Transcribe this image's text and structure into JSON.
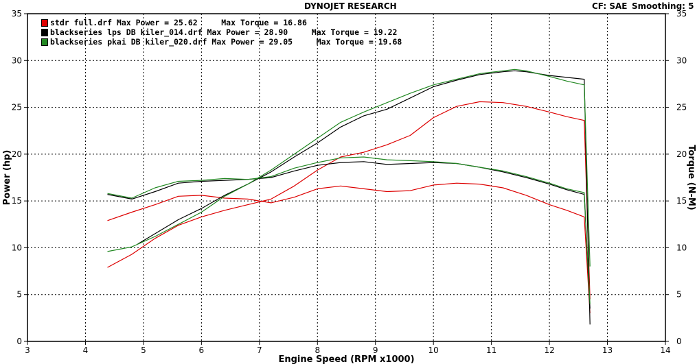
{
  "header": {
    "title": "DYNOJET RESEARCH",
    "cf_label": "CF: SAE",
    "smoothing_label": "Smoothing: 5"
  },
  "legend": [
    {
      "text": "stdr full.drf Max Power = 25.62     Max Torque = 16.86",
      "color": "#dd0000"
    },
    {
      "text": "blackseries lps DB kiler_014.drf Max Power = 28.90     Max Torque = 19.22",
      "color": "#000000"
    },
    {
      "text": "blackseries pkai DB kiler_020.drf Max Power = 29.05     Max Torque = 19.68",
      "color": "#228822"
    }
  ],
  "chart_data": {
    "type": "line",
    "xlabel": "Engine Speed (RPM x1000)",
    "ylabel": "Power (hp)",
    "y2label": "Torque (N-M)",
    "xlim": [
      3,
      14
    ],
    "ylim": [
      0,
      35
    ],
    "y2lim": [
      0,
      35
    ],
    "xticks": [
      3,
      4,
      5,
      6,
      7,
      8,
      9,
      10,
      11,
      12,
      13,
      14
    ],
    "yticks": [
      0,
      5,
      10,
      15,
      20,
      25,
      30,
      35
    ],
    "grid": true,
    "legend_position": "top-left",
    "series": [
      {
        "name": "stdr full.drf",
        "measure": "power",
        "color": "#dd0000",
        "x": [
          4.38,
          4.8,
          5.2,
          5.6,
          6.0,
          6.4,
          6.8,
          7.2,
          7.6,
          8.0,
          8.4,
          8.8,
          9.2,
          9.6,
          10.0,
          10.4,
          10.8,
          11.2,
          11.6,
          12.0,
          12.3,
          12.6,
          12.7
        ],
        "y": [
          7.9,
          9.3,
          11.0,
          12.4,
          13.3,
          14.0,
          14.6,
          15.2,
          16.6,
          18.3,
          19.7,
          20.2,
          21.0,
          22.0,
          23.9,
          25.1,
          25.6,
          25.5,
          25.1,
          24.5,
          24.0,
          23.6,
          4.5
        ]
      },
      {
        "name": "stdr full.drf",
        "measure": "torque",
        "color": "#dd0000",
        "x": [
          4.38,
          4.8,
          5.2,
          5.6,
          6.0,
          6.4,
          6.8,
          7.2,
          7.6,
          8.0,
          8.4,
          8.8,
          9.2,
          9.6,
          10.0,
          10.4,
          10.8,
          11.2,
          11.6,
          12.0,
          12.3,
          12.6,
          12.7
        ],
        "y": [
          12.9,
          13.8,
          14.6,
          15.5,
          15.6,
          15.3,
          15.2,
          14.8,
          15.4,
          16.3,
          16.6,
          16.3,
          16.0,
          16.1,
          16.7,
          16.9,
          16.8,
          16.4,
          15.6,
          14.6,
          14.0,
          13.3,
          3.0
        ]
      },
      {
        "name": "blackseries lps DB kiler_014.drf",
        "measure": "power",
        "color": "#000000",
        "x": [
          4.9,
          5.2,
          5.6,
          6.0,
          6.4,
          6.8,
          7.2,
          7.6,
          8.0,
          8.4,
          8.8,
          9.2,
          9.6,
          10.0,
          10.4,
          10.8,
          11.2,
          11.4,
          11.6,
          12.0,
          12.3,
          12.6,
          12.7
        ],
        "y": [
          10.4,
          11.5,
          13.0,
          14.2,
          15.6,
          16.8,
          18.1,
          19.7,
          21.2,
          22.9,
          24.1,
          24.8,
          26.0,
          27.2,
          27.9,
          28.5,
          28.8,
          28.9,
          28.8,
          28.4,
          28.2,
          28.0,
          1.8
        ]
      },
      {
        "name": "blackseries lps DB kiler_014.drf",
        "measure": "torque",
        "color": "#000000",
        "x": [
          4.38,
          4.8,
          5.2,
          5.6,
          6.0,
          6.4,
          6.8,
          7.2,
          7.6,
          8.0,
          8.4,
          8.8,
          9.2,
          9.6,
          10.0,
          10.4,
          10.8,
          11.2,
          11.6,
          12.0,
          12.3,
          12.6,
          12.7
        ],
        "y": [
          15.7,
          15.2,
          16.0,
          16.9,
          17.1,
          17.2,
          17.3,
          17.5,
          18.2,
          18.8,
          19.1,
          19.2,
          18.9,
          19.0,
          19.1,
          19.0,
          18.6,
          18.1,
          17.5,
          16.8,
          16.2,
          15.7,
          3.5
        ]
      },
      {
        "name": "blackseries pkai DB kiler_020.drf",
        "measure": "power",
        "color": "#228822",
        "x": [
          4.38,
          4.8,
          5.2,
          5.6,
          6.0,
          6.4,
          6.8,
          7.2,
          7.6,
          8.0,
          8.4,
          8.8,
          9.2,
          9.6,
          10.0,
          10.4,
          10.8,
          11.2,
          11.4,
          11.6,
          12.0,
          12.3,
          12.6,
          12.7
        ],
        "y": [
          9.6,
          10.1,
          11.2,
          12.5,
          13.8,
          15.5,
          16.8,
          18.3,
          20.0,
          21.7,
          23.4,
          24.5,
          25.5,
          26.5,
          27.4,
          28.0,
          28.6,
          28.9,
          29.05,
          28.9,
          28.3,
          27.8,
          27.4,
          8.0
        ]
      },
      {
        "name": "blackseries pkai DB kiler_020.drf",
        "measure": "torque",
        "color": "#228822",
        "x": [
          4.38,
          4.8,
          5.2,
          5.6,
          6.0,
          6.4,
          6.8,
          7.2,
          7.6,
          8.0,
          8.4,
          8.8,
          9.2,
          9.6,
          10.0,
          10.4,
          10.8,
          11.2,
          11.6,
          12.0,
          12.3,
          12.6,
          12.7
        ],
        "y": [
          15.8,
          15.3,
          16.4,
          17.1,
          17.2,
          17.4,
          17.3,
          17.6,
          18.5,
          19.1,
          19.6,
          19.7,
          19.4,
          19.3,
          19.2,
          19.0,
          18.6,
          18.2,
          17.6,
          16.9,
          16.3,
          15.9,
          4.0
        ]
      }
    ]
  }
}
